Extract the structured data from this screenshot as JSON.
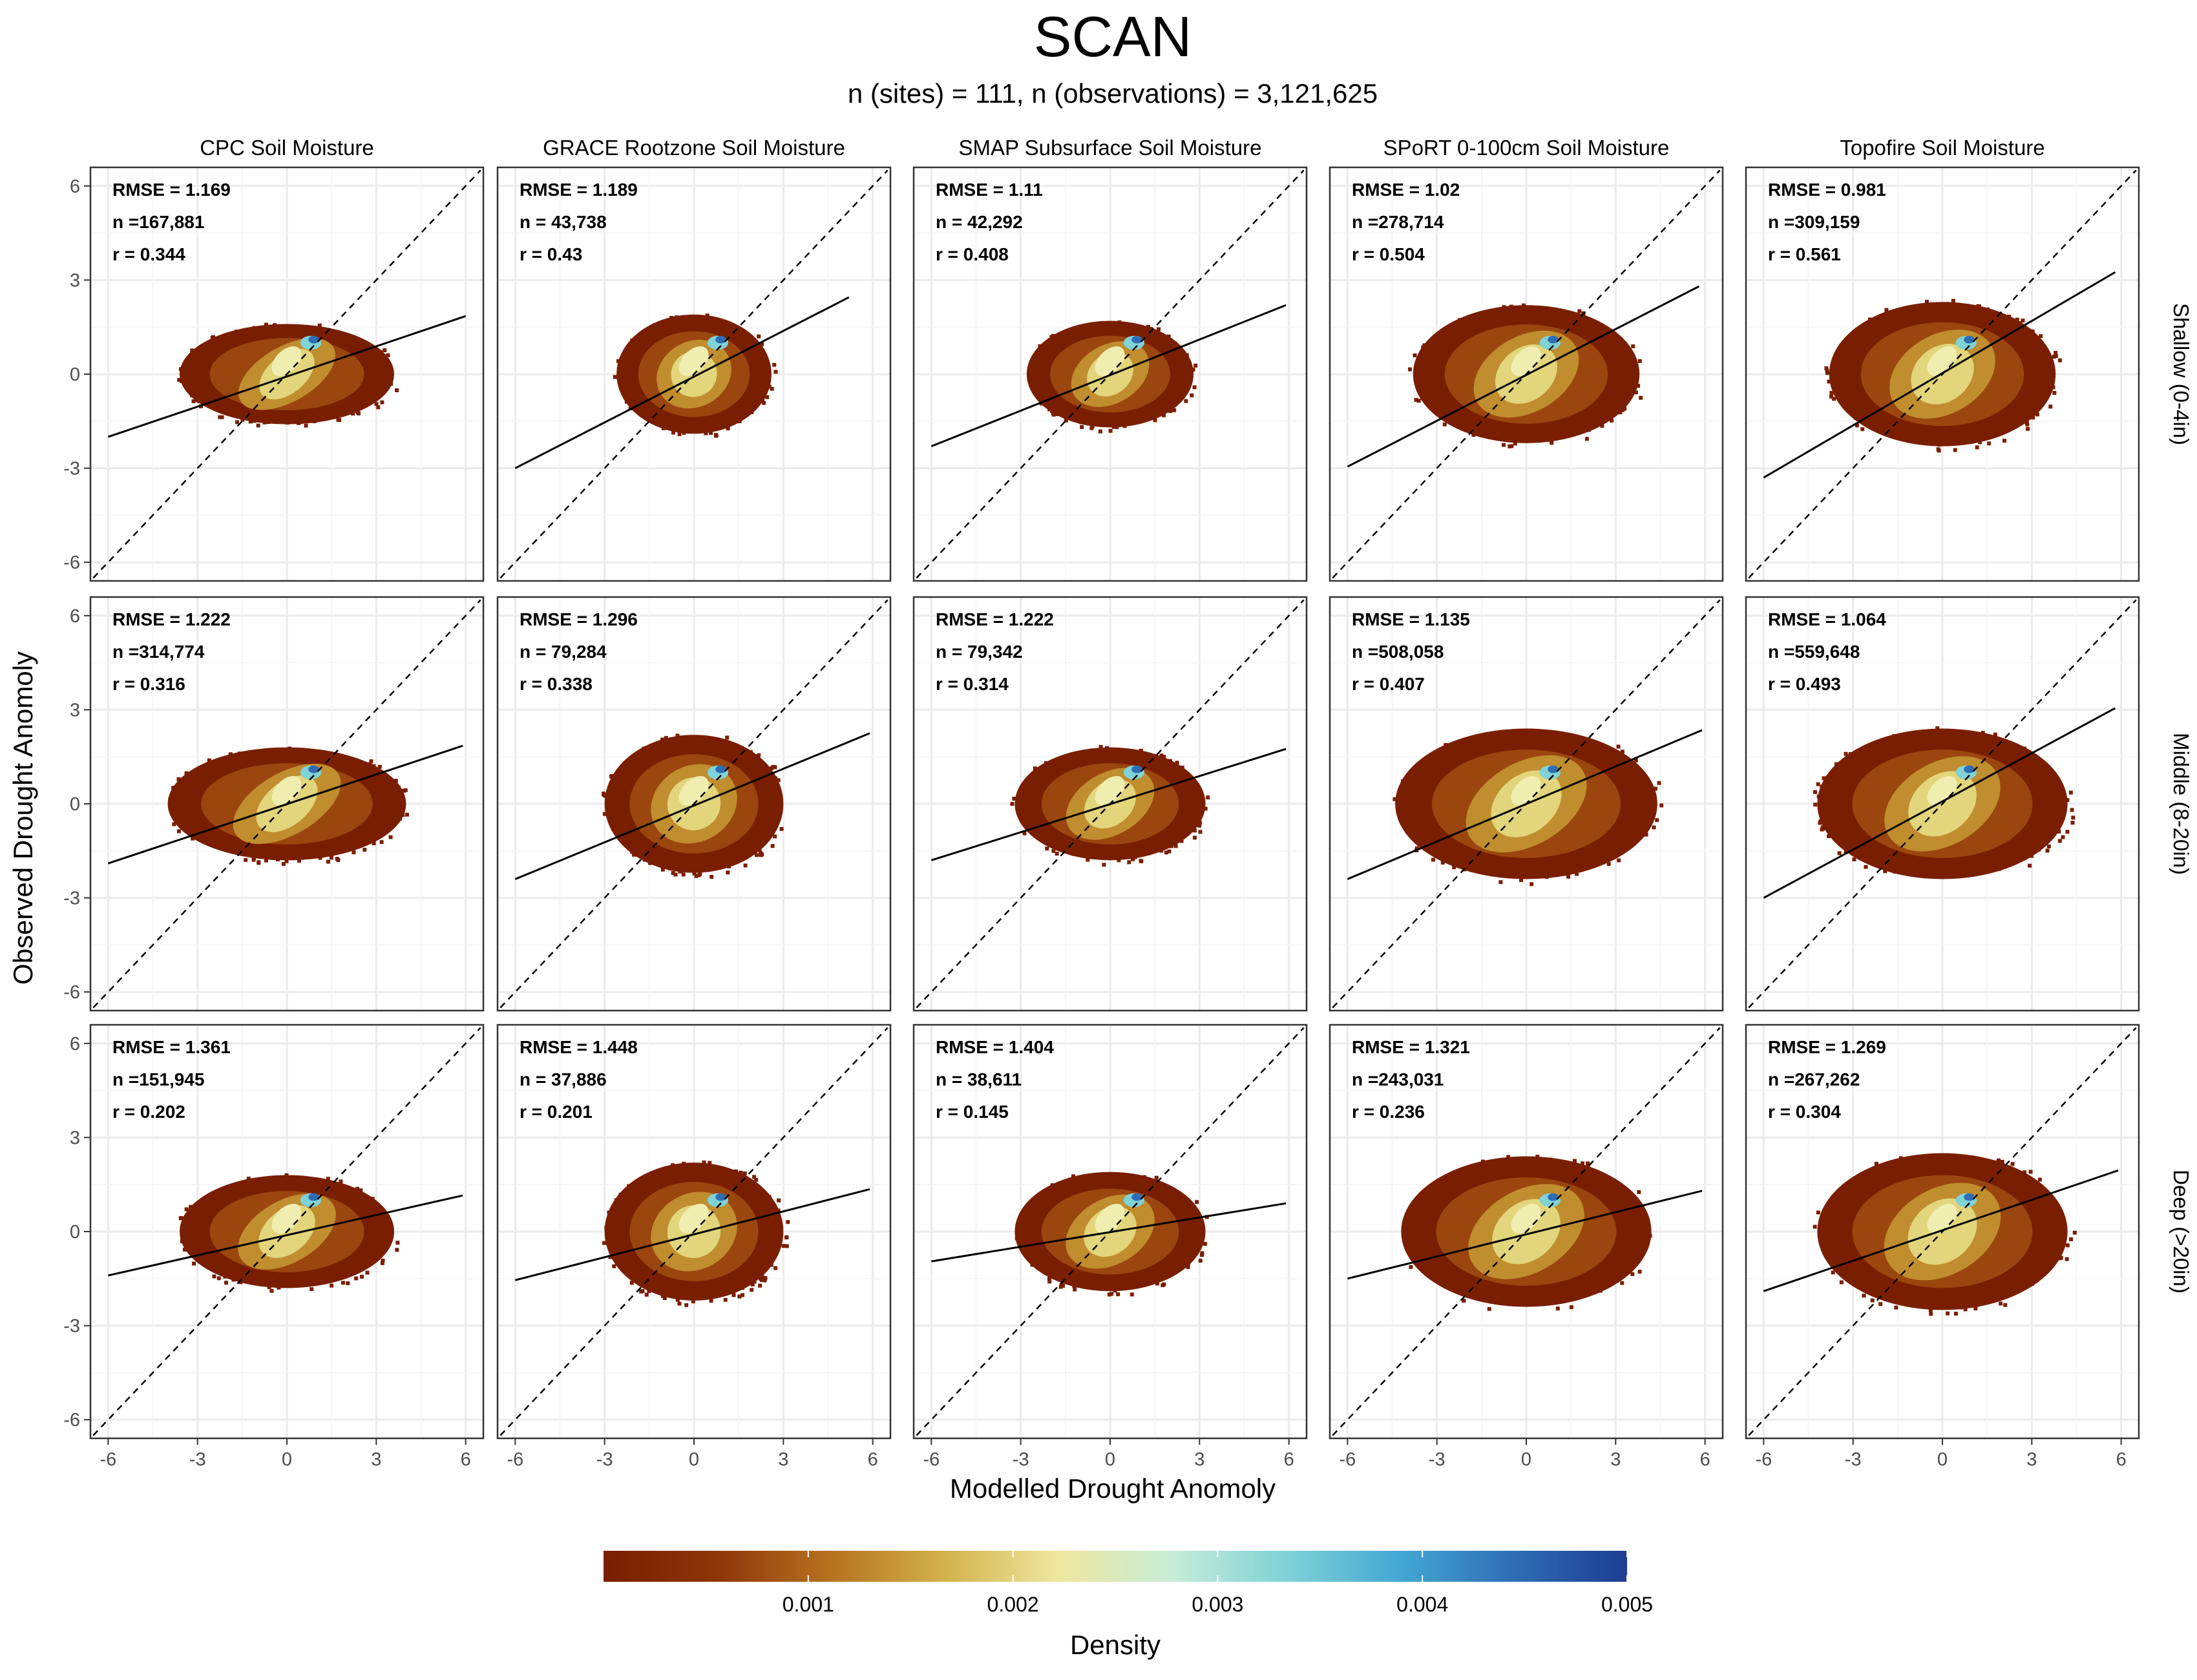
{
  "title": "SCAN",
  "subtitle": "n (sites) = 111, n (observations) = 3,121,625",
  "chart_data": {
    "type": "heatmap",
    "description_free": true,
    "xlabel": "Modelled Drought Anomoly",
    "ylabel": "Observed Drought Anomoly",
    "xlim": [
      -6,
      6
    ],
    "ylim": [
      -6,
      6
    ],
    "ticks": [
      "-6",
      "-3",
      "0",
      "3",
      "6"
    ],
    "tick_values": [
      -6,
      -3,
      0,
      3,
      6
    ],
    "grid": true,
    "columns": [
      "CPC Soil Moisture",
      "GRACE Rootzone Soil Moisture",
      "SMAP Subsurface Soil Moisture",
      "SPoRT 0-100cm Soil Moisture",
      "Topofire Soil Moisture"
    ],
    "rows": [
      "Shallow (0-4in)",
      "Middle (8-20in)",
      "Deep (>20in)"
    ],
    "stats": [
      [
        {
          "rmse": "RMSE = 1.169",
          "n": "n =167,881",
          "r": "r = 0.344"
        },
        {
          "rmse": "RMSE = 1.189",
          "n": "n = 43,738",
          "r": "r = 0.43"
        },
        {
          "rmse": "RMSE = 1.11",
          "n": "n = 42,292",
          "r": "r = 0.408"
        },
        {
          "rmse": "RMSE = 1.02",
          "n": "n =278,714",
          "r": "r = 0.504"
        },
        {
          "rmse": "RMSE = 0.981",
          "n": "n =309,159",
          "r": "r = 0.561"
        }
      ],
      [
        {
          "rmse": "RMSE = 1.222",
          "n": "n =314,774",
          "r": "r = 0.316"
        },
        {
          "rmse": "RMSE = 1.296",
          "n": "n = 79,284",
          "r": "r = 0.338"
        },
        {
          "rmse": "RMSE = 1.222",
          "n": "n = 79,342",
          "r": "r = 0.314"
        },
        {
          "rmse": "RMSE = 1.135",
          "n": "n =508,058",
          "r": "r = 0.407"
        },
        {
          "rmse": "RMSE = 1.064",
          "n": "n =559,648",
          "r": "r = 0.493"
        }
      ],
      [
        {
          "rmse": "RMSE = 1.361",
          "n": "n =151,945",
          "r": "r = 0.202"
        },
        {
          "rmse": "RMSE = 1.448",
          "n": "n = 37,886",
          "r": "r = 0.201"
        },
        {
          "rmse": "RMSE = 1.404",
          "n": "n = 38,611",
          "r": "r = 0.145"
        },
        {
          "rmse": "RMSE = 1.321",
          "n": "n =243,031",
          "r": "r = 0.236"
        },
        {
          "rmse": "RMSE = 1.269",
          "n": "n =267,262",
          "r": "r = 0.304"
        }
      ]
    ],
    "fit_lines": [
      [
        {
          "x": [
            -6,
            6
          ],
          "y": [
            -2.0,
            1.85
          ]
        },
        {
          "x": [
            -6,
            5.2
          ],
          "y": [
            -3.0,
            2.45
          ]
        },
        {
          "x": [
            -6,
            5.9
          ],
          "y": [
            -2.3,
            2.2
          ]
        },
        {
          "x": [
            -6,
            5.8
          ],
          "y": [
            -2.95,
            2.8
          ]
        },
        {
          "x": [
            -6,
            5.8
          ],
          "y": [
            -3.3,
            3.25
          ]
        }
      ],
      [
        {
          "x": [
            -6,
            5.9
          ],
          "y": [
            -1.9,
            1.85
          ]
        },
        {
          "x": [
            -6,
            5.9
          ],
          "y": [
            -2.4,
            2.25
          ]
        },
        {
          "x": [
            -6,
            5.9
          ],
          "y": [
            -1.8,
            1.75
          ]
        },
        {
          "x": [
            -6,
            5.9
          ],
          "y": [
            -2.4,
            2.35
          ]
        },
        {
          "x": [
            -6,
            5.8
          ],
          "y": [
            -3.0,
            3.05
          ]
        }
      ],
      [
        {
          "x": [
            -6,
            5.9
          ],
          "y": [
            -1.4,
            1.15
          ]
        },
        {
          "x": [
            -6,
            5.9
          ],
          "y": [
            -1.55,
            1.35
          ]
        },
        {
          "x": [
            -6,
            5.9
          ],
          "y": [
            -0.95,
            0.9
          ]
        },
        {
          "x": [
            -6,
            5.9
          ],
          "y": [
            -1.5,
            1.3
          ]
        },
        {
          "x": [
            -6,
            5.9
          ],
          "y": [
            -1.9,
            1.95
          ]
        }
      ]
    ],
    "identity_line": "y = x",
    "legend": {
      "title": "Density",
      "position": "bottom",
      "range": [
        0,
        0.005
      ],
      "ticks": [
        "0.001",
        "0.002",
        "0.003",
        "0.004",
        "0.005"
      ],
      "tick_values": [
        0.001,
        0.002,
        0.003,
        0.004,
        0.005
      ],
      "colors": [
        "#7a1e02",
        "#8f3509",
        "#b5731f",
        "#d3b24c",
        "#eee79f",
        "#c6ecd8",
        "#7fd2d6",
        "#44a8d4",
        "#2e6db4",
        "#1d3d93"
      ]
    }
  }
}
